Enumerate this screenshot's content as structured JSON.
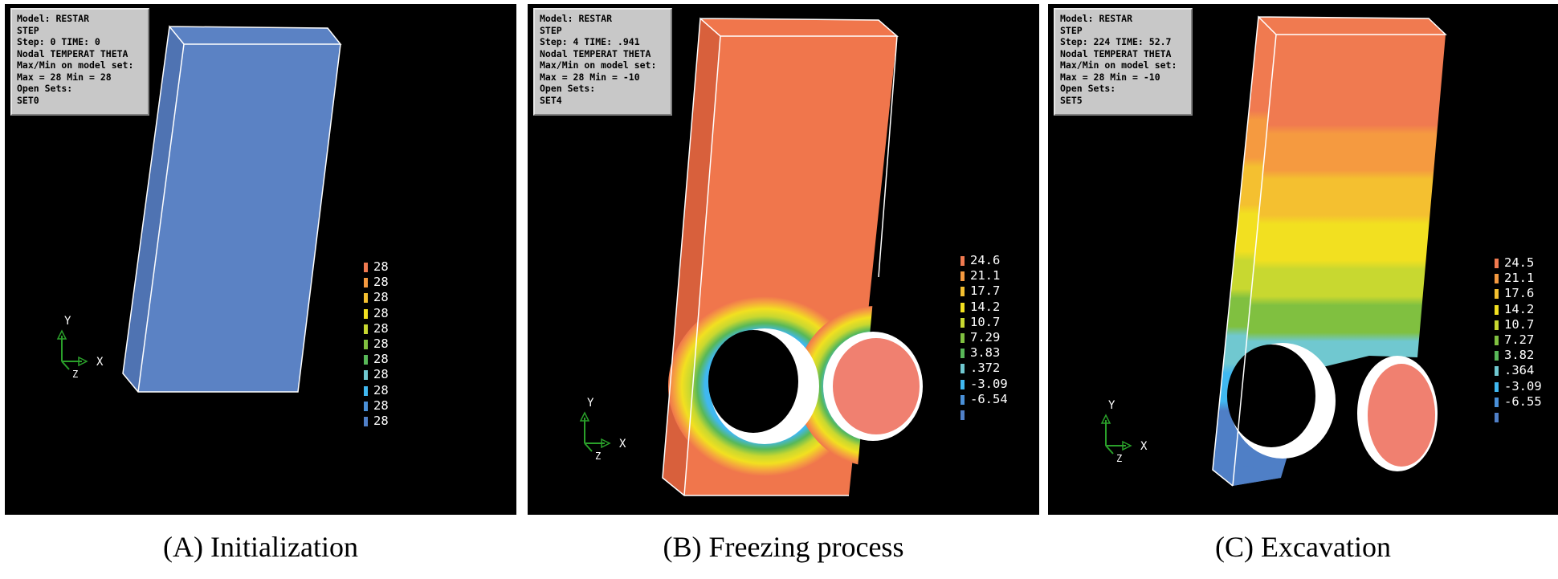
{
  "panels": [
    {
      "caption": "(A) Initialization",
      "info": {
        "model": "Model: RESTAR",
        "step_header": "STEP",
        "step": "Step: 0  TIME: 0",
        "variable": "Nodal TEMPERAT THETA",
        "maxmin_label": "Max/Min on model set:",
        "maxmin": "Max = 28  Min = 28",
        "open_sets": "Open Sets:",
        "set": "SET0"
      },
      "legend": [
        "28",
        "28",
        "28",
        "28",
        "28",
        "28",
        "28",
        "28",
        "28",
        "28",
        "28"
      ],
      "axes": {
        "y": "Y",
        "x": "X",
        "z": "Z"
      }
    },
    {
      "caption": "(B) Freezing process",
      "info": {
        "model": "Model: RESTAR",
        "step_header": "STEP",
        "step": "Step: 4  TIME: .941",
        "variable": "Nodal TEMPERAT THETA",
        "maxmin_label": "Max/Min on model set:",
        "maxmin": "Max = 28  Min = -10",
        "open_sets": "Open Sets:",
        "set": "SET4"
      },
      "legend": [
        "24.6",
        "21.1",
        "17.7",
        "14.2",
        "10.7",
        "7.29",
        "3.83",
        ".372",
        "-3.09",
        "-6.54",
        ""
      ],
      "axes": {
        "y": "Y",
        "x": "X",
        "z": "Z"
      }
    },
    {
      "caption": "(C) Excavation",
      "info": {
        "model": "Model: RESTAR",
        "step_header": "STEP",
        "step": "Step: 224  TIME: 52.7",
        "variable": "Nodal TEMPERAT THETA",
        "maxmin_label": "Max/Min on model set:",
        "maxmin": "Max = 28  Min = -10",
        "open_sets": "Open Sets:",
        "set": "SET5"
      },
      "legend": [
        "24.5",
        "21.1",
        "17.6",
        "14.2",
        "10.7",
        "7.27",
        "3.82",
        ".364",
        "-3.09",
        "-6.55",
        ""
      ],
      "axes": {
        "y": "Y",
        "x": "X",
        "z": "Z"
      }
    }
  ],
  "colors": {
    "legend_scale": [
      "#f07a50",
      "#f59a40",
      "#f4c030",
      "#f2e020",
      "#c8d830",
      "#80c040",
      "#58b858",
      "#70c8d0",
      "#40b8f0",
      "#4a90d8",
      "#5080c8"
    ],
    "initial_block": "#5b82c4",
    "warm_block": "#f0764c",
    "frozen": "#4f7fc6"
  }
}
